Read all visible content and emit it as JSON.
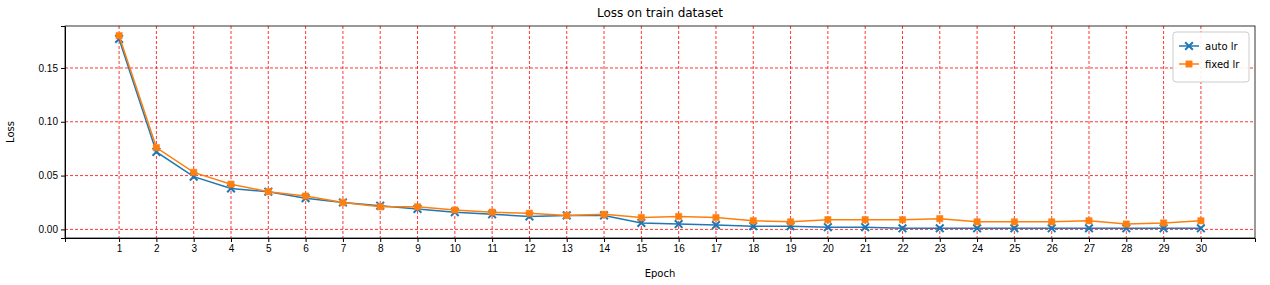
{
  "chart_data": {
    "type": "line",
    "title": "Loss on train dataset",
    "x_label": "Epoch",
    "y_label": "Loss",
    "x": [
      1,
      2,
      3,
      4,
      5,
      6,
      7,
      8,
      9,
      10,
      11,
      12,
      13,
      14,
      15,
      16,
      17,
      18,
      19,
      20,
      21,
      22,
      23,
      24,
      25,
      26,
      27,
      28,
      29,
      30
    ],
    "series": [
      {
        "name": "auto lr",
        "color": "#1f77b4",
        "marker": "x",
        "line_style": "solid",
        "values": [
          0.177,
          0.072,
          0.049,
          0.038,
          0.035,
          0.029,
          0.025,
          0.022,
          0.019,
          0.016,
          0.014,
          0.012,
          0.013,
          0.013,
          0.006,
          0.005,
          0.004,
          0.003,
          0.003,
          0.002,
          0.002,
          0.001,
          0.001,
          0.001,
          0.001,
          0.001,
          0.001,
          0.001,
          0.001,
          0.001
        ]
      },
      {
        "name": "fixed lr",
        "color": "#ff7f0e",
        "marker": "square",
        "line_style": "solid",
        "values": [
          0.18,
          0.076,
          0.053,
          0.042,
          0.035,
          0.031,
          0.025,
          0.021,
          0.021,
          0.018,
          0.016,
          0.015,
          0.013,
          0.014,
          0.011,
          0.012,
          0.011,
          0.008,
          0.007,
          0.009,
          0.009,
          0.009,
          0.01,
          0.007,
          0.007,
          0.007,
          0.008,
          0.005,
          0.006,
          0.008
        ]
      }
    ],
    "xlim": [
      -0.45,
      31.45
    ],
    "xticks": [
      1,
      2,
      3,
      4,
      5,
      6,
      7,
      8,
      9,
      10,
      11,
      12,
      13,
      14,
      15,
      16,
      17,
      18,
      19,
      20,
      21,
      22,
      23,
      24,
      25,
      26,
      27,
      28,
      29,
      30
    ],
    "ylim": [
      -0.008,
      0.189
    ],
    "yticks": [
      {
        "value": 0,
        "label": "0.00"
      },
      {
        "value": 0.05,
        "label": "0.05"
      },
      {
        "value": 0.1,
        "label": "0.10"
      },
      {
        "value": 0.15,
        "label": "0.15"
      }
    ],
    "grid": true,
    "legend": "upper right"
  }
}
